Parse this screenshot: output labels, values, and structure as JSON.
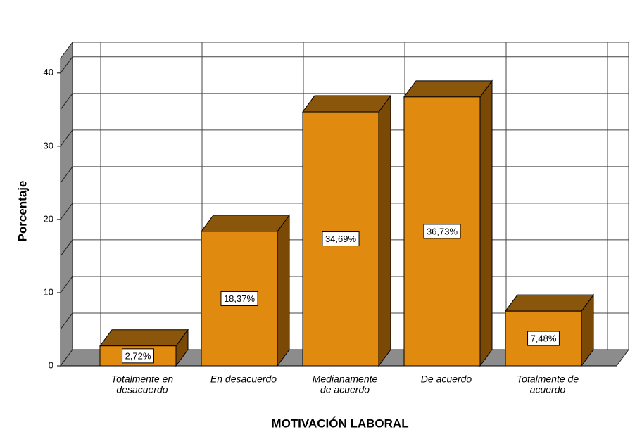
{
  "chart_data": {
    "type": "bar3d",
    "xlabel": "MOTIVACIÓN LABORAL",
    "ylabel": "Porcentaje",
    "categories": [
      [
        "Totalmente en",
        "desacuerdo"
      ],
      [
        "En desacuerdo"
      ],
      [
        "Medianamente",
        "de acuerdo"
      ],
      [
        "De acuerdo"
      ],
      [
        "Totalmente de",
        "acuerdo"
      ]
    ],
    "values": [
      2.72,
      18.37,
      34.69,
      36.73,
      7.48
    ],
    "value_labels": [
      "2,72%",
      "18,37%",
      "34,69%",
      "36,73%",
      "7,48%"
    ],
    "color": "#e08a10",
    "top_color": "#8a560b",
    "side_color": "#7a4906",
    "ylim": [
      0,
      42
    ],
    "yticks": [
      0,
      10,
      20,
      30,
      40
    ],
    "minor_yticks": [
      5,
      15,
      25,
      35
    ],
    "grid": true
  }
}
